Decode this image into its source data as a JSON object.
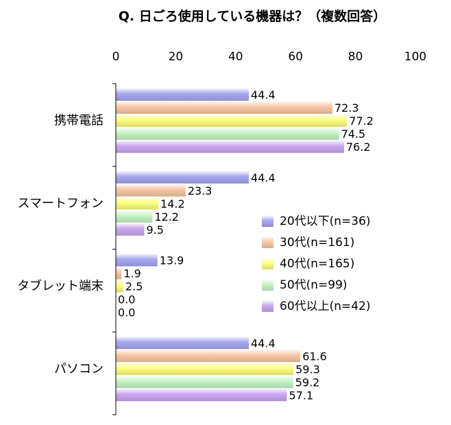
{
  "chart_data": {
    "type": "bar",
    "orientation": "horizontal",
    "title": "Q. 日ごろ使用している機器は？（複数回答）",
    "categories": [
      "携帯電話",
      "スマートフォン",
      "タブレット端末",
      "パソコン"
    ],
    "xlim": [
      0,
      100
    ],
    "x_ticks": [
      "0",
      "20",
      "40",
      "60",
      "80",
      "100"
    ],
    "series": [
      {
        "name": "20代以下(n=36)",
        "values": [
          44.4,
          44.4,
          13.9,
          44.4
        ],
        "labels": [
          "44.4",
          "44.4",
          "13.9",
          "44.4"
        ],
        "color": "#a8a8f0"
      },
      {
        "name": "30代(n=161)",
        "values": [
          72.3,
          23.3,
          1.9,
          61.6
        ],
        "labels": [
          "72.3",
          "23.3",
          "1.9",
          "61.6"
        ],
        "color": "#f8c8a4"
      },
      {
        "name": "40代(n=165)",
        "values": [
          77.2,
          14.2,
          2.5,
          59.3
        ],
        "labels": [
          "77.2",
          "14.2",
          "2.5",
          "59.3"
        ],
        "color": "#ffff80"
      },
      {
        "name": "50代(n=99)",
        "values": [
          74.5,
          12.2,
          0.0,
          59.2
        ],
        "labels": [
          "74.5",
          "12.2",
          "0.0",
          "59.2"
        ],
        "color": "#c8f4c8"
      },
      {
        "name": "60代以上(n=42)",
        "values": [
          76.2,
          9.5,
          0.0,
          57.1
        ],
        "labels": [
          "76.2",
          "9.5",
          "0.0",
          "57.1"
        ],
        "color": "#cca8f0"
      }
    ],
    "legend_position": "right",
    "grid": false
  }
}
